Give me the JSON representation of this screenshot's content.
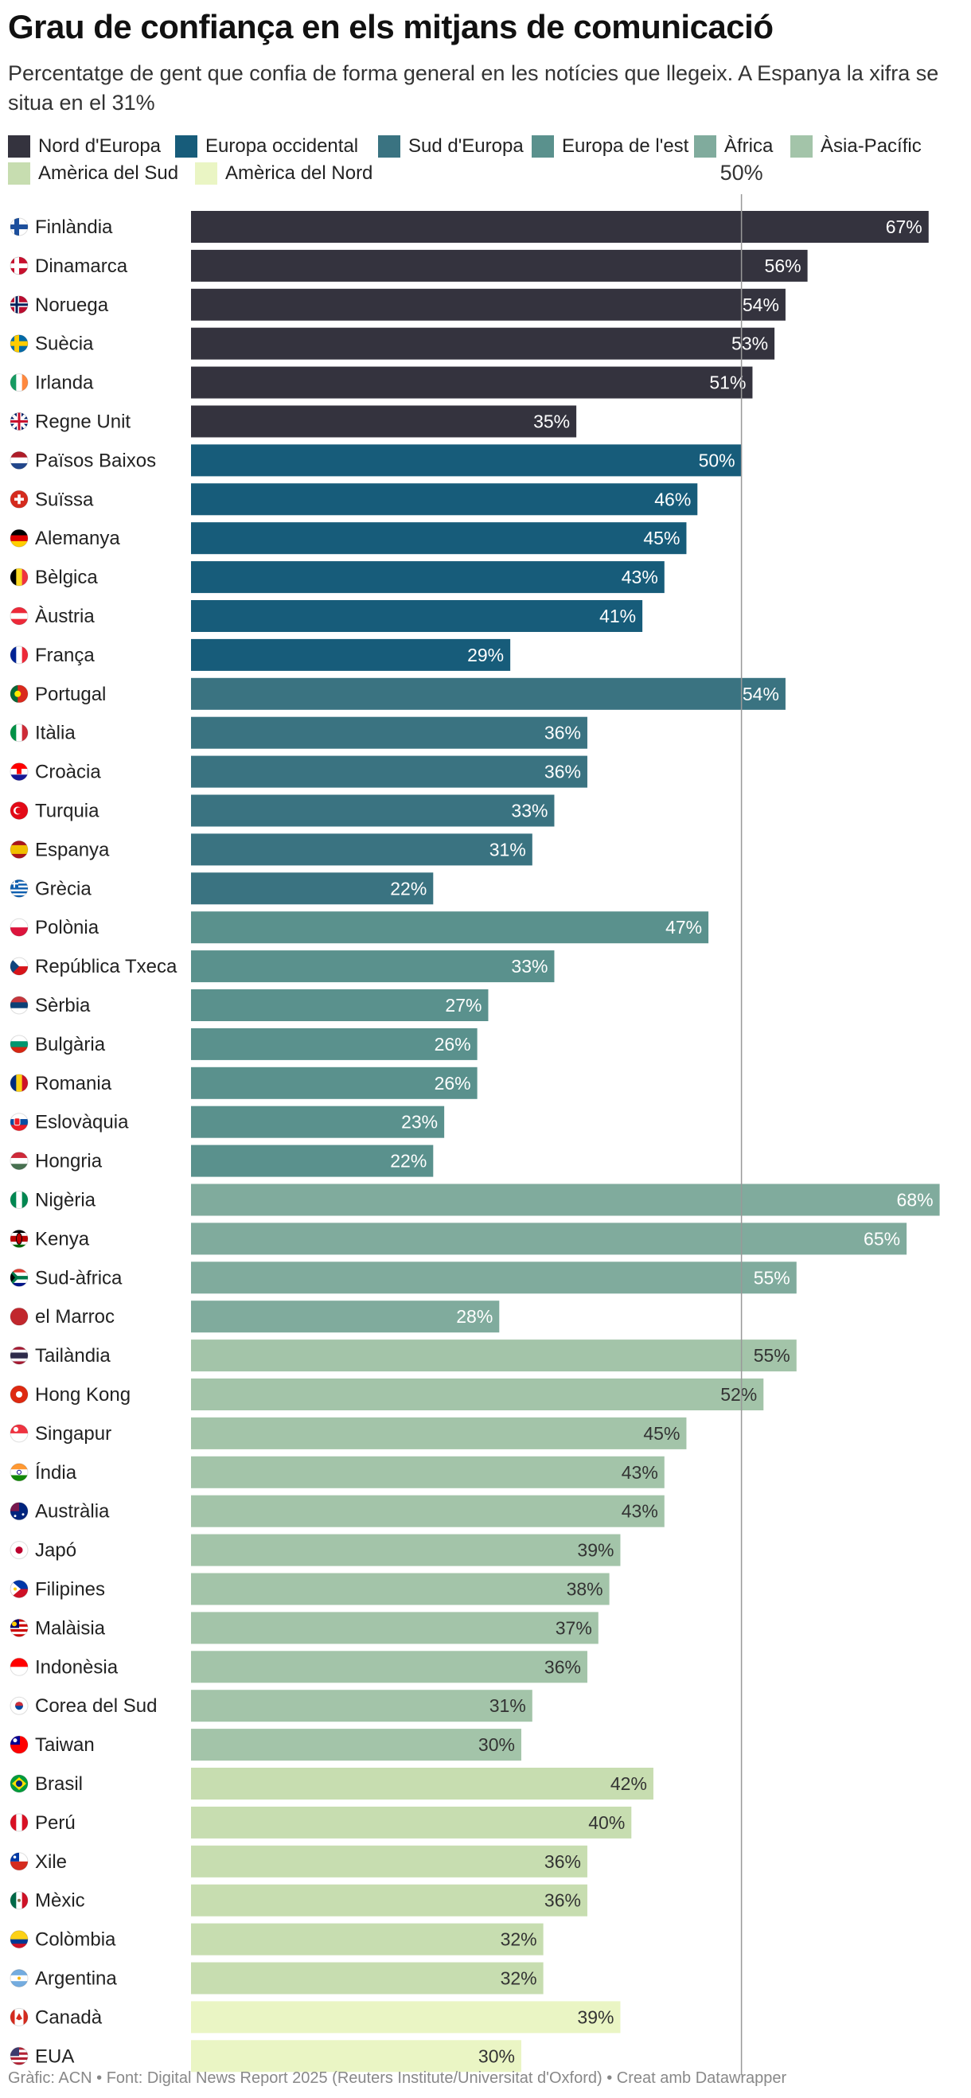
{
  "chart_data": {
    "type": "bar",
    "orientation": "horizontal",
    "title": "Grau de confiança en els mitjans de comunicació",
    "subtitle": "Percentatge de gent que confia de forma general en les notícies que llegeix. A Espanya la xifra se situa en el 31%",
    "value_suffix": "%",
    "xlim": [
      0,
      70
    ],
    "grid": false,
    "reference_line": {
      "value": 50,
      "label": "50%"
    },
    "legend": [
      {
        "name": "Nord d'Europa",
        "color": "#34333e"
      },
      {
        "name": "Europa occidental",
        "color": "#175c7a"
      },
      {
        "name": "Sud d'Europa",
        "color": "#3a7381"
      },
      {
        "name": "Europa de l'est",
        "color": "#5a918d"
      },
      {
        "name": "Àfrica",
        "color": "#80ab9d"
      },
      {
        "name": "Àsia-Pacífic",
        "color": "#a3c4a9"
      },
      {
        "name": "Amèrica del Sud",
        "color": "#c7ddb0"
      },
      {
        "name": "Amèrica del Nord",
        "color": "#eaf5c4"
      }
    ],
    "rows": [
      {
        "label": "Finlàndia",
        "value": 67,
        "group": 0,
        "flag": "finland-flag"
      },
      {
        "label": "Dinamarca",
        "value": 56,
        "group": 0,
        "flag": "denmark-flag"
      },
      {
        "label": "Noruega",
        "value": 54,
        "group": 0,
        "flag": "norway-flag"
      },
      {
        "label": "Suècia",
        "value": 53,
        "group": 0,
        "flag": "sweden-flag"
      },
      {
        "label": "Irlanda",
        "value": 51,
        "group": 0,
        "flag": "ireland-flag"
      },
      {
        "label": "Regne Unit",
        "value": 35,
        "group": 0,
        "flag": "uk-flag"
      },
      {
        "label": "Països Baixos",
        "value": 50,
        "group": 1,
        "flag": "netherlands-flag"
      },
      {
        "label": "Suïssa",
        "value": 46,
        "group": 1,
        "flag": "switzerland-flag"
      },
      {
        "label": "Alemanya",
        "value": 45,
        "group": 1,
        "flag": "germany-flag"
      },
      {
        "label": "Bèlgica",
        "value": 43,
        "group": 1,
        "flag": "belgium-flag"
      },
      {
        "label": "Àustria",
        "value": 41,
        "group": 1,
        "flag": "austria-flag"
      },
      {
        "label": "França",
        "value": 29,
        "group": 1,
        "flag": "france-flag"
      },
      {
        "label": "Portugal",
        "value": 54,
        "group": 2,
        "flag": "portugal-flag"
      },
      {
        "label": "Itàlia",
        "value": 36,
        "group": 2,
        "flag": "italy-flag"
      },
      {
        "label": "Croàcia",
        "value": 36,
        "group": 2,
        "flag": "croatia-flag"
      },
      {
        "label": "Turquia",
        "value": 33,
        "group": 2,
        "flag": "turkey-flag"
      },
      {
        "label": "Espanya",
        "value": 31,
        "group": 2,
        "flag": "spain-flag"
      },
      {
        "label": "Grècia",
        "value": 22,
        "group": 2,
        "flag": "greece-flag"
      },
      {
        "label": "Polònia",
        "value": 47,
        "group": 3,
        "flag": "poland-flag"
      },
      {
        "label": "República Txeca",
        "value": 33,
        "group": 3,
        "flag": "czechia-flag"
      },
      {
        "label": "Sèrbia",
        "value": 27,
        "group": 3,
        "flag": "serbia-flag"
      },
      {
        "label": "Bulgària",
        "value": 26,
        "group": 3,
        "flag": "bulgaria-flag"
      },
      {
        "label": "Romania",
        "value": 26,
        "group": 3,
        "flag": "romania-flag"
      },
      {
        "label": "Eslovàquia",
        "value": 23,
        "group": 3,
        "flag": "slovakia-flag"
      },
      {
        "label": "Hongria",
        "value": 22,
        "group": 3,
        "flag": "hungary-flag"
      },
      {
        "label": "Nigèria",
        "value": 68,
        "group": 4,
        "flag": "nigeria-flag"
      },
      {
        "label": "Kenya",
        "value": 65,
        "group": 4,
        "flag": "kenya-flag"
      },
      {
        "label": "Sud-àfrica",
        "value": 55,
        "group": 4,
        "flag": "south-africa-flag"
      },
      {
        "label": "el Marroc",
        "value": 28,
        "group": 4,
        "flag": "morocco-flag"
      },
      {
        "label": "Tailàndia",
        "value": 55,
        "group": 5,
        "flag": "thailand-flag"
      },
      {
        "label": "Hong Kong",
        "value": 52,
        "group": 5,
        "flag": "hong-kong-flag"
      },
      {
        "label": "Singapur",
        "value": 45,
        "group": 5,
        "flag": "singapore-flag"
      },
      {
        "label": "Índia",
        "value": 43,
        "group": 5,
        "flag": "india-flag"
      },
      {
        "label": "Austràlia",
        "value": 43,
        "group": 5,
        "flag": "australia-flag"
      },
      {
        "label": "Japó",
        "value": 39,
        "group": 5,
        "flag": "japan-flag"
      },
      {
        "label": "Filipines",
        "value": 38,
        "group": 5,
        "flag": "philippines-flag"
      },
      {
        "label": "Malàisia",
        "value": 37,
        "group": 5,
        "flag": "malaysia-flag"
      },
      {
        "label": "Indonèsia",
        "value": 36,
        "group": 5,
        "flag": "indonesia-flag"
      },
      {
        "label": "Corea del Sud",
        "value": 31,
        "group": 5,
        "flag": "south-korea-flag"
      },
      {
        "label": "Taiwan",
        "value": 30,
        "group": 5,
        "flag": "taiwan-flag"
      },
      {
        "label": "Brasil",
        "value": 42,
        "group": 6,
        "flag": "brazil-flag"
      },
      {
        "label": "Perú",
        "value": 40,
        "group": 6,
        "flag": "peru-flag"
      },
      {
        "label": "Xile",
        "value": 36,
        "group": 6,
        "flag": "chile-flag"
      },
      {
        "label": "Mèxic",
        "value": 36,
        "group": 6,
        "flag": "mexico-flag"
      },
      {
        "label": "Colòmbia",
        "value": 32,
        "group": 6,
        "flag": "colombia-flag"
      },
      {
        "label": "Argentina",
        "value": 32,
        "group": 6,
        "flag": "argentina-flag"
      },
      {
        "label": "Canadà",
        "value": 39,
        "group": 7,
        "flag": "canada-flag"
      },
      {
        "label": "EUA",
        "value": 30,
        "group": 7,
        "flag": "usa-flag"
      }
    ]
  },
  "footer": "Gràfic: ACN • Font: Digital News Report 2025 (Reuters Institute/Universitat d'Oxford) • Creat amb Datawrapper"
}
